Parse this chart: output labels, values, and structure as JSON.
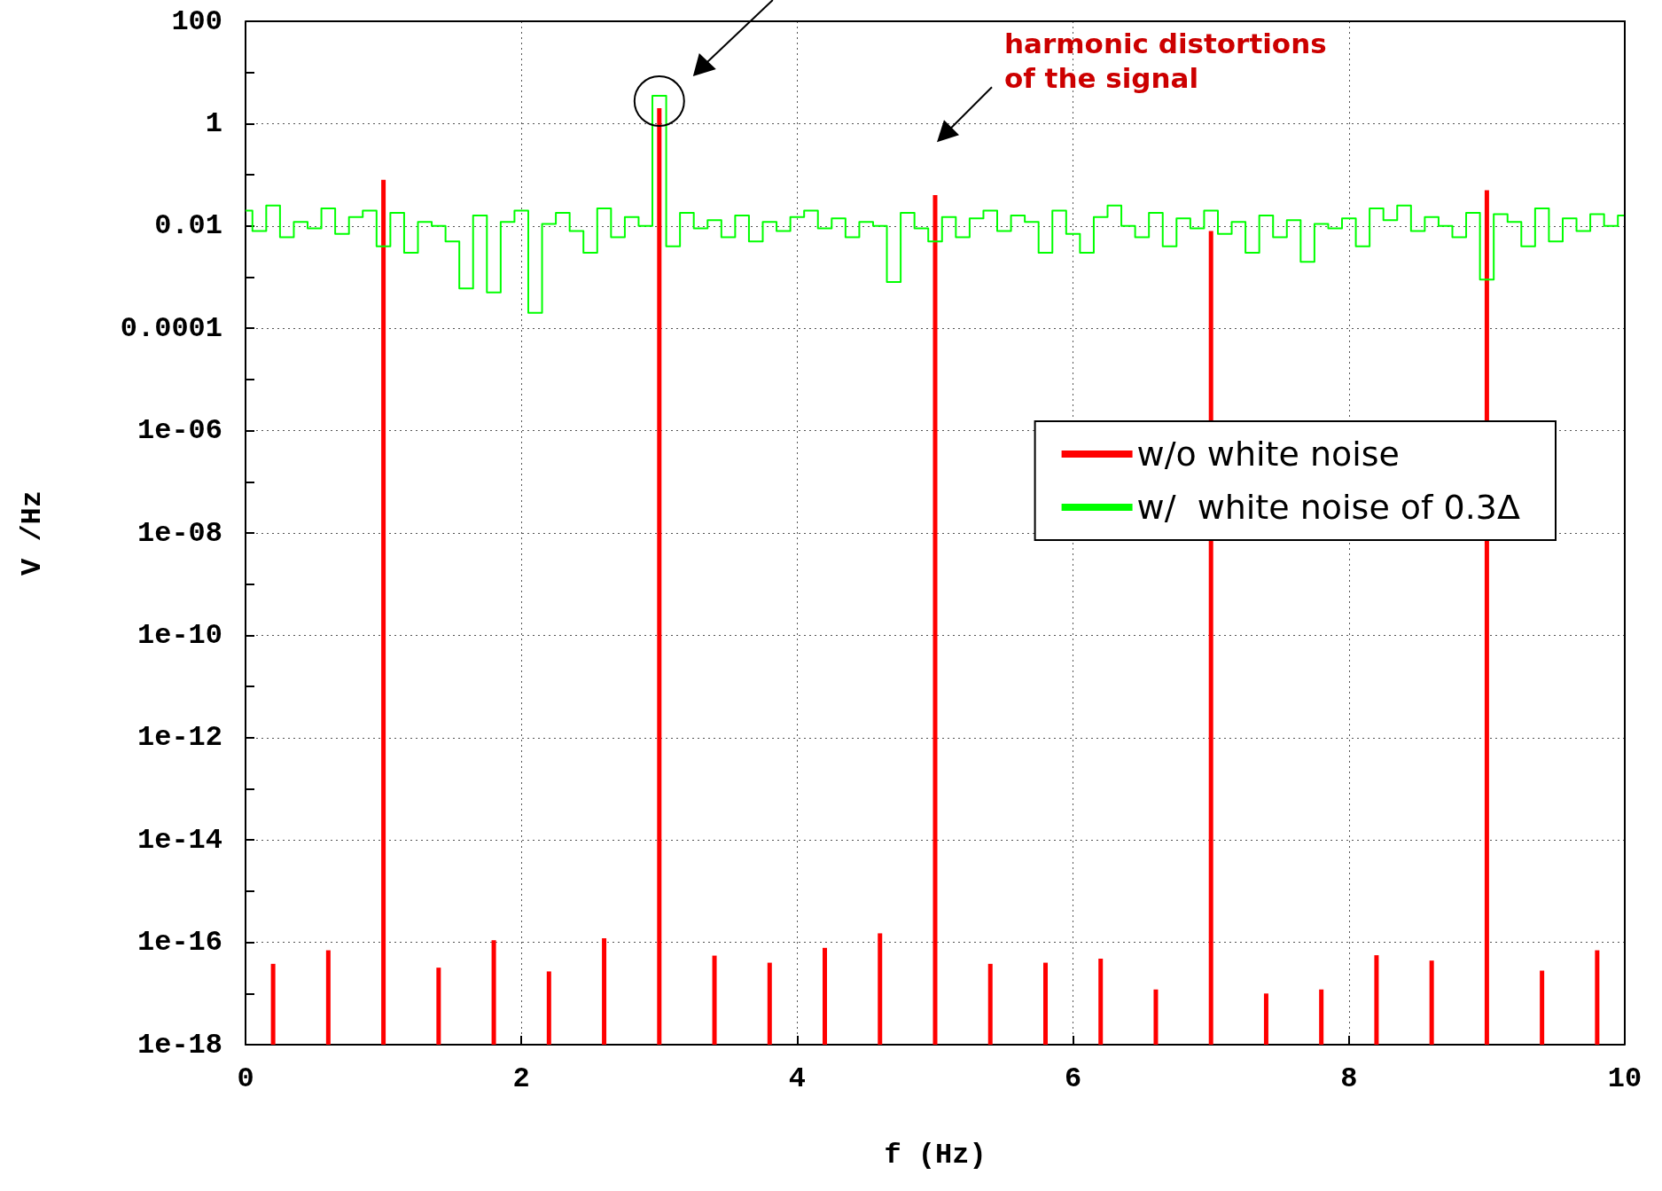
{
  "chart_data": {
    "type": "bar",
    "xlabel": "f (Hz)",
    "ylabel": "V /Hz",
    "log": "y",
    "grid": true,
    "legend": "right",
    "xlim": [
      0,
      10
    ],
    "xticks": [
      0,
      2,
      4,
      6,
      8,
      10
    ],
    "ylim": [
      1e-18,
      100
    ],
    "yticks": [
      100,
      {
        "value": 10,
        "label": null
      },
      1,
      {
        "value": 0.1,
        "label": null
      },
      0.01,
      {
        "value": 0.001,
        "label": null
      },
      0.0001,
      {
        "value": 1e-05,
        "label": null
      },
      {
        "value": 1e-06,
        "label": "1e-06"
      },
      {
        "value": 1e-07,
        "label": null
      },
      {
        "value": 1e-08,
        "label": "1e-08"
      },
      {
        "value": 1e-09,
        "label": null
      },
      {
        "value": 1e-10,
        "label": "1e-10"
      },
      {
        "value": 1e-11,
        "label": null
      },
      {
        "value": 1e-12,
        "label": "1e-12"
      },
      {
        "value": 1e-13,
        "label": null
      },
      {
        "value": 1e-14,
        "label": "1e-14"
      },
      {
        "value": 1e-15,
        "label": null
      },
      {
        "value": 1e-16,
        "label": "1e-16"
      },
      {
        "value": 1e-17,
        "label": null
      },
      {
        "value": 1e-18,
        "label": "1e-18"
      }
    ],
    "annotations": [
      "harmonic distortions\nof the signal"
    ],
    "series": [
      {
        "name": "w/o white noise",
        "color": "#ff0000",
        "x": [
          0.2,
          0.6,
          1.0,
          1.4,
          1.8,
          2.2,
          2.6,
          3.0,
          3.4,
          3.8,
          4.2,
          4.6,
          5.0,
          5.4,
          5.8,
          6.2,
          6.6,
          7.0,
          7.4,
          7.8,
          8.2,
          8.6,
          9.0,
          9.4,
          9.8
        ],
        "values": [
          3.8e-17,
          7e-17,
          0.08,
          3.2e-17,
          1.1e-16,
          2.7e-17,
          1.2e-16,
          2,
          5.5e-17,
          4e-17,
          7.8e-17,
          1.5e-16,
          0.04,
          3.8e-17,
          4e-17,
          4.8e-17,
          1.2e-17,
          0.008,
          1e-17,
          1.2e-17,
          5.6e-17,
          4.4e-17,
          0.05,
          2.8e-17,
          7e-17
        ]
      },
      {
        "name": "w/  white noise of 0.3Δ",
        "type": "step",
        "color": "#00ff00",
        "x": [
          0,
          0.1,
          0.2,
          0.3,
          0.4,
          0.5,
          0.6,
          0.7,
          0.8,
          0.9,
          1.0,
          1.1,
          1.2,
          1.3,
          1.4,
          1.5,
          1.6,
          1.7,
          1.8,
          1.9,
          2.0,
          2.1,
          2.2,
          2.3,
          2.4,
          2.5,
          2.6,
          2.7,
          2.8,
          2.9,
          3.0,
          3.1,
          3.2,
          3.3,
          3.4,
          3.5,
          3.6,
          3.7,
          3.8,
          3.9,
          4.0,
          4.1,
          4.2,
          4.3,
          4.4,
          4.5,
          4.6,
          4.7,
          4.8,
          4.9,
          5.0,
          5.1,
          5.2,
          5.3,
          5.4,
          5.5,
          5.6,
          5.7,
          5.8,
          5.9,
          6.0,
          6.1,
          6.2,
          6.3,
          6.4,
          6.5,
          6.6,
          6.7,
          6.8,
          6.9,
          7.0,
          7.1,
          7.2,
          7.3,
          7.4,
          7.5,
          7.6,
          7.7,
          7.8,
          7.9,
          8.0,
          8.1,
          8.2,
          8.3,
          8.4,
          8.5,
          8.6,
          8.7,
          8.8,
          8.9,
          9.0,
          9.1,
          9.2,
          9.3,
          9.4,
          9.5,
          9.6,
          9.7,
          9.8,
          9.9,
          10.0
        ],
        "values": [
          0.02,
          0.008,
          0.025,
          0.006,
          0.012,
          0.009,
          0.022,
          0.007,
          0.015,
          0.02,
          0.004,
          0.018,
          0.003,
          0.012,
          0.01,
          0.005,
          0.0006,
          0.016,
          0.0005,
          0.012,
          0.02,
          0.0002,
          0.011,
          0.018,
          0.008,
          0.003,
          0.022,
          0.006,
          0.015,
          0.01,
          3.5,
          0.004,
          0.018,
          0.009,
          0.013,
          0.006,
          0.016,
          0.005,
          0.012,
          0.008,
          0.015,
          0.02,
          0.009,
          0.014,
          0.006,
          0.012,
          0.01,
          0.0008,
          0.018,
          0.009,
          0.005,
          0.015,
          0.006,
          0.014,
          0.02,
          0.008,
          0.016,
          0.012,
          0.003,
          0.02,
          0.007,
          0.003,
          0.015,
          0.025,
          0.01,
          0.006,
          0.018,
          0.004,
          0.014,
          0.009,
          0.02,
          0.007,
          0.012,
          0.003,
          0.016,
          0.006,
          0.013,
          0.002,
          0.011,
          0.009,
          0.014,
          0.004,
          0.022,
          0.013,
          0.025,
          0.008,
          0.015,
          0.01,
          0.006,
          0.018,
          0.0009,
          0.017,
          0.012,
          0.004,
          0.022,
          0.005,
          0.014,
          0.008,
          0.017,
          0.01,
          0.016
        ]
      }
    ]
  }
}
